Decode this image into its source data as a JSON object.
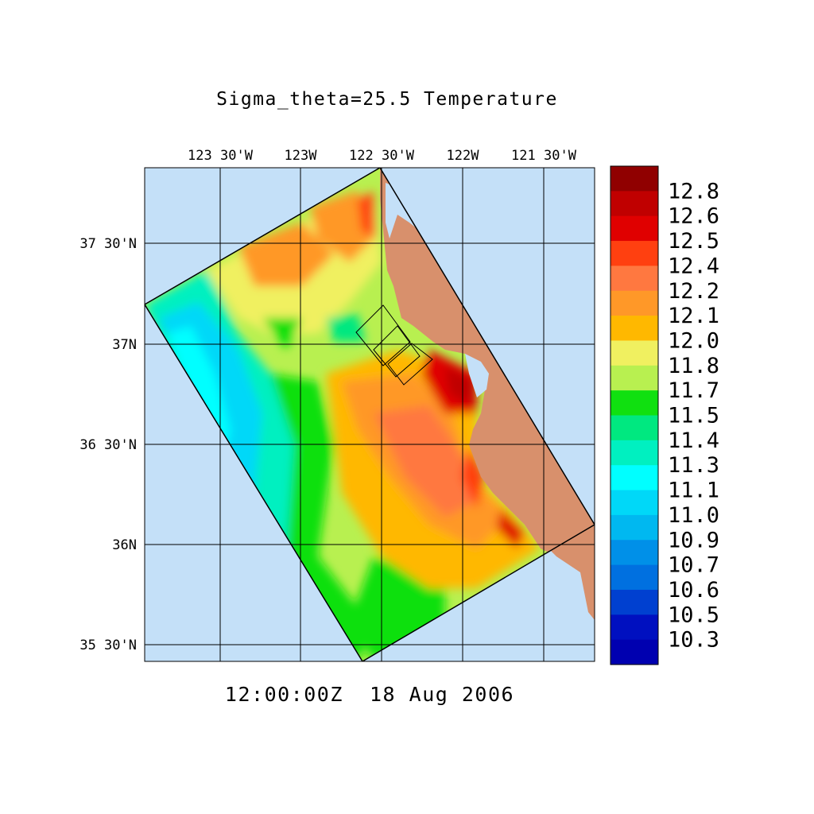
{
  "title": "Sigma_theta=25.5 Temperature",
  "timestamp": "12:00:00Z  18 Aug 2006",
  "axes": {
    "longitude_ticks": [
      "123 30'W",
      "123W",
      "122 30'W",
      "122W",
      "121 30'W"
    ],
    "latitude_ticks": [
      "37 30'N",
      "37N",
      "36 30'N",
      "36N",
      "35 30'N"
    ]
  },
  "colors": {
    "ocean_background": "#c4e0f8",
    "land": "#d8906c",
    "grid": "#000000"
  },
  "colorbar": {
    "labels": [
      "12.8",
      "12.6",
      "12.5",
      "12.4",
      "12.2",
      "12.1",
      "12.0",
      "11.8",
      "11.7",
      "11.5",
      "11.4",
      "11.3",
      "11.1",
      "11.0",
      "10.9",
      "10.7",
      "10.6",
      "10.5",
      "10.3"
    ],
    "colors": [
      "#900000",
      "#c00000",
      "#e00000",
      "#ff4010",
      "#ff7840",
      "#ff9828",
      "#ffb800",
      "#f0f060",
      "#b8f050",
      "#10e010",
      "#00e880",
      "#00f0c0",
      "#00ffff",
      "#00d8f8",
      "#00b8f0",
      "#0090e8",
      "#0070e0",
      "#0040d0",
      "#0010c0"
    ]
  }
}
